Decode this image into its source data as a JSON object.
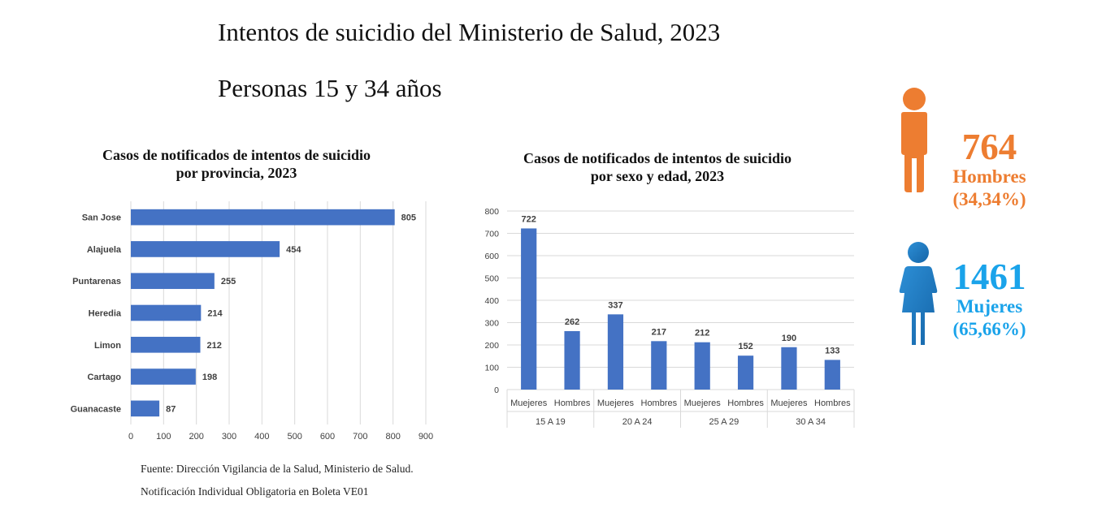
{
  "header": {
    "title": "Intentos de suicidio del Ministerio de Salud, 2023",
    "subtitle": "Personas 15 y 34 años"
  },
  "chart_data": [
    {
      "type": "bar",
      "orientation": "horizontal",
      "title_line1": "Casos de notificados de intentos de suicidio",
      "title_line2": "por provincia, 2023",
      "categories": [
        "San Jose",
        "Alajuela",
        "Puntarenas",
        "Heredia",
        "Limon",
        "Cartago",
        "Guanacaste"
      ],
      "values": [
        805,
        454,
        255,
        214,
        212,
        198,
        87
      ],
      "xlim": [
        0,
        900
      ],
      "ticks": [
        0,
        100,
        200,
        300,
        400,
        500,
        600,
        700,
        800,
        900
      ],
      "color": "#4472c4",
      "grid": true
    },
    {
      "type": "bar",
      "orientation": "vertical",
      "title_line1": "Casos de notificados de intentos de suicidio",
      "title_line2": "por sexo y edad, 2023",
      "groups": [
        "15 A 19",
        "20 A 24",
        "25 A 29",
        "30 A 34"
      ],
      "categories": [
        "Muejeres",
        "Hombres",
        "Muejeres",
        "Hombres",
        "Muejeres",
        "Hombres",
        "Muejeres",
        "Hombres"
      ],
      "values": [
        722,
        262,
        337,
        217,
        212,
        152,
        190,
        133
      ],
      "ylim": [
        0,
        800
      ],
      "ticks": [
        0,
        100,
        200,
        300,
        400,
        500,
        600,
        700,
        800
      ],
      "color": "#4472c4",
      "grid": true
    }
  ],
  "stats": {
    "men": {
      "number": "764",
      "label": "Hombres",
      "percent": "(34,34%)",
      "color": "#ed7d31",
      "icon": "male-figure-icon"
    },
    "women": {
      "number": "1461",
      "label": "Mujeres",
      "percent": "(65,66%)",
      "color": "#1aa3ea",
      "icon": "female-figure-icon"
    }
  },
  "source": {
    "line1": "Fuente: Dirección Vigilancia de la Salud, Ministerio de Salud.",
    "line2": "Notificación Individual Obligatoria en Boleta VE01"
  }
}
